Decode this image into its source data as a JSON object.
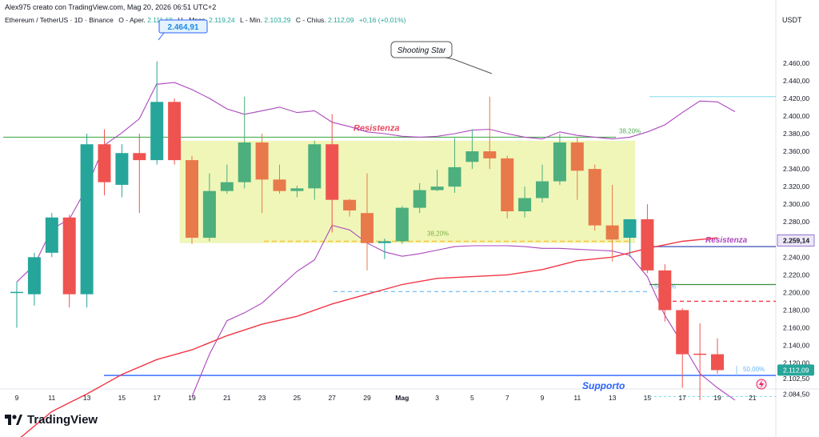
{
  "header": {
    "title": "Alex975 creato con TradingView.com, Mag 20, 2026 06:51 UTC+2"
  },
  "symbol_row": {
    "name": "Ethereum / TetherUS · 1D · Binance",
    "open_label": "O - Aper.",
    "open_value": "2.111,68",
    "high_label": "H - Mass.",
    "high_value": "2.119,24",
    "low_label": "L - Min.",
    "low_value": "2.103,29",
    "close_label": "C - Chius.",
    "close_value": "2.112,09",
    "change": "+0,16 (+0,01%)"
  },
  "currency": "USDT",
  "footer": {
    "logo_text": "TradingView"
  },
  "colors": {
    "up": "#26a69a",
    "up_light": "#4caf7d",
    "down": "#ef5350",
    "down_orange": "#e8794a",
    "range_box": "#eef5b0",
    "resistance_line": "#4caf50",
    "support_line": "#2962ff",
    "bb_band": "#ab47bc",
    "ma_line": "#f23645",
    "price_tag": "#26a69a"
  },
  "chart_data": {
    "type": "candlestick",
    "y_axis_labels": [
      "2.460,00",
      "2.440,00",
      "2.420,00",
      "2.400,00",
      "2.380,00",
      "2.360,00",
      "2.340,00",
      "2.320,00",
      "2.300,00",
      "2.280,00",
      "2.240,00",
      "2.220,00",
      "2.200,00",
      "2.180,00",
      "2.160,00",
      "2.140,00",
      "2.120,00",
      "2.102,50",
      "2.084,50"
    ],
    "y_axis_values": [
      2460,
      2440,
      2420,
      2400,
      2380,
      2360,
      2340,
      2320,
      2300,
      2280,
      2240,
      2220,
      2200,
      2180,
      2160,
      2140,
      2120,
      2102.5,
      2084.5
    ],
    "x_axis_labels": [
      {
        "label": "9",
        "idx": 0
      },
      {
        "label": "11",
        "idx": 2
      },
      {
        "label": "13",
        "idx": 4
      },
      {
        "label": "15",
        "idx": 6
      },
      {
        "label": "17",
        "idx": 8
      },
      {
        "label": "19",
        "idx": 10
      },
      {
        "label": "21",
        "idx": 12
      },
      {
        "label": "23",
        "idx": 14
      },
      {
        "label": "25",
        "idx": 16
      },
      {
        "label": "27",
        "idx": 18
      },
      {
        "label": "29",
        "idx": 20
      },
      {
        "label": "Mag",
        "idx": 22
      },
      {
        "label": "3",
        "idx": 24
      },
      {
        "label": "5",
        "idx": 26
      },
      {
        "label": "7",
        "idx": 28
      },
      {
        "label": "9",
        "idx": 30
      },
      {
        "label": "11",
        "idx": 32
      },
      {
        "label": "13",
        "idx": 34
      },
      {
        "label": "15",
        "idx": 36
      },
      {
        "label": "17",
        "idx": 38
      },
      {
        "label": "19",
        "idx": 40
      },
      {
        "label": "21",
        "idx": 42
      }
    ],
    "candles": [
      {
        "i": 0,
        "o": 2200,
        "h": 2212,
        "l": 2160,
        "c": 2200,
        "style": "flat"
      },
      {
        "i": 1,
        "o": 2198,
        "h": 2245,
        "l": 2185,
        "c": 2240,
        "style": "up"
      },
      {
        "i": 2,
        "o": 2245,
        "h": 2290,
        "l": 2240,
        "c": 2285,
        "style": "up"
      },
      {
        "i": 3,
        "o": 2285,
        "h": 2288,
        "l": 2183,
        "c": 2198,
        "style": "down"
      },
      {
        "i": 4,
        "o": 2198,
        "h": 2380,
        "l": 2183,
        "c": 2368,
        "style": "up"
      },
      {
        "i": 5,
        "o": 2368,
        "h": 2385,
        "l": 2310,
        "c": 2325,
        "style": "down"
      },
      {
        "i": 6,
        "o": 2322,
        "h": 2368,
        "l": 2308,
        "c": 2358,
        "style": "up"
      },
      {
        "i": 7,
        "o": 2358,
        "h": 2380,
        "l": 2290,
        "c": 2350,
        "style": "down"
      },
      {
        "i": 8,
        "o": 2350,
        "h": 2462,
        "l": 2345,
        "c": 2416,
        "style": "up"
      },
      {
        "i": 9,
        "o": 2416,
        "h": 2420,
        "l": 2345,
        "c": 2350,
        "style": "down"
      },
      {
        "i": 10,
        "o": 2350,
        "h": 2355,
        "l": 2255,
        "c": 2262,
        "style": "down_orange"
      },
      {
        "i": 11,
        "o": 2262,
        "h": 2335,
        "l": 2258,
        "c": 2315,
        "style": "up_light"
      },
      {
        "i": 12,
        "o": 2315,
        "h": 2345,
        "l": 2312,
        "c": 2325,
        "style": "up_light"
      },
      {
        "i": 13,
        "o": 2325,
        "h": 2422,
        "l": 2318,
        "c": 2370,
        "style": "up_light"
      },
      {
        "i": 14,
        "o": 2370,
        "h": 2380,
        "l": 2290,
        "c": 2328,
        "style": "down_orange"
      },
      {
        "i": 15,
        "o": 2328,
        "h": 2345,
        "l": 2312,
        "c": 2315,
        "style": "down_orange"
      },
      {
        "i": 16,
        "o": 2315,
        "h": 2321,
        "l": 2308,
        "c": 2318,
        "style": "up_light"
      },
      {
        "i": 17,
        "o": 2318,
        "h": 2372,
        "l": 2305,
        "c": 2368,
        "style": "up_light"
      },
      {
        "i": 18,
        "o": 2368,
        "h": 2402,
        "l": 2268,
        "c": 2305,
        "style": "down"
      },
      {
        "i": 19,
        "o": 2305,
        "h": 2306,
        "l": 2286,
        "c": 2293,
        "style": "down_orange"
      },
      {
        "i": 20,
        "o": 2290,
        "h": 2335,
        "l": 2225,
        "c": 2256,
        "style": "down_orange"
      },
      {
        "i": 21,
        "o": 2256,
        "h": 2261,
        "l": 2238,
        "c": 2258,
        "style": "up"
      },
      {
        "i": 22,
        "o": 2258,
        "h": 2298,
        "l": 2255,
        "c": 2296,
        "style": "up_light"
      },
      {
        "i": 23,
        "o": 2296,
        "h": 2324,
        "l": 2290,
        "c": 2316,
        "style": "up_light"
      },
      {
        "i": 24,
        "o": 2316,
        "h": 2339,
        "l": 2315,
        "c": 2320,
        "style": "up_light"
      },
      {
        "i": 25,
        "o": 2320,
        "h": 2375,
        "l": 2313,
        "c": 2342,
        "style": "up_light"
      },
      {
        "i": 26,
        "o": 2348,
        "h": 2385,
        "l": 2340,
        "c": 2360,
        "style": "up_light"
      },
      {
        "i": 27,
        "o": 2360,
        "h": 2422,
        "l": 2340,
        "c": 2352,
        "style": "down_orange"
      },
      {
        "i": 28,
        "o": 2352,
        "h": 2355,
        "l": 2284,
        "c": 2292,
        "style": "down_orange"
      },
      {
        "i": 29,
        "o": 2292,
        "h": 2320,
        "l": 2285,
        "c": 2307,
        "style": "up_light"
      },
      {
        "i": 30,
        "o": 2307,
        "h": 2345,
        "l": 2302,
        "c": 2326,
        "style": "up_light"
      },
      {
        "i": 31,
        "o": 2326,
        "h": 2380,
        "l": 2322,
        "c": 2370,
        "style": "up_light"
      },
      {
        "i": 32,
        "o": 2370,
        "h": 2376,
        "l": 2305,
        "c": 2338,
        "style": "down_orange"
      },
      {
        "i": 33,
        "o": 2340,
        "h": 2345,
        "l": 2270,
        "c": 2276,
        "style": "down_orange"
      },
      {
        "i": 34,
        "o": 2276,
        "h": 2322,
        "l": 2235,
        "c": 2260,
        "style": "down_orange"
      },
      {
        "i": 35,
        "o": 2262,
        "h": 2283,
        "l": 2240,
        "c": 2283,
        "style": "up"
      },
      {
        "i": 36,
        "o": 2283,
        "h": 2300,
        "l": 2222,
        "c": 2225,
        "style": "down"
      },
      {
        "i": 37,
        "o": 2225,
        "h": 2232,
        "l": 2167,
        "c": 2180,
        "style": "down"
      },
      {
        "i": 38,
        "o": 2180,
        "h": 2182,
        "l": 2092,
        "c": 2130,
        "style": "down"
      },
      {
        "i": 39,
        "o": 2130,
        "h": 2165,
        "l": 2078,
        "c": 2130,
        "style": "down_thin"
      },
      {
        "i": 40,
        "o": 2130,
        "h": 2148,
        "l": 2108,
        "c": 2112,
        "style": "down"
      }
    ],
    "bollinger_upper": [
      [
        8,
        2436
      ],
      [
        9,
        2438
      ],
      [
        10,
        2430
      ],
      [
        11,
        2420
      ],
      [
        12,
        2408
      ],
      [
        13,
        2402
      ],
      [
        14,
        2406
      ],
      [
        15,
        2410
      ],
      [
        16,
        2404
      ],
      [
        17,
        2406
      ],
      [
        18,
        2393
      ],
      [
        19,
        2388
      ],
      [
        20,
        2382
      ],
      [
        21,
        2380
      ],
      [
        22,
        2377
      ],
      [
        23,
        2376
      ],
      [
        24,
        2377
      ],
      [
        25,
        2380
      ],
      [
        26,
        2384
      ],
      [
        27,
        2385
      ],
      [
        28,
        2380
      ],
      [
        29,
        2376
      ],
      [
        30,
        2374
      ],
      [
        31,
        2382
      ],
      [
        32,
        2378
      ],
      [
        33,
        2376
      ],
      [
        34,
        2374
      ],
      [
        35,
        2376
      ],
      [
        36,
        2382
      ],
      [
        37,
        2390
      ],
      [
        38,
        2404
      ],
      [
        39,
        2417
      ],
      [
        40,
        2416
      ],
      [
        41,
        2405
      ]
    ],
    "bollinger_lower": [
      [
        10,
        2082
      ],
      [
        11,
        2130
      ],
      [
        12,
        2168
      ],
      [
        13,
        2177
      ],
      [
        14,
        2188
      ],
      [
        15,
        2206
      ],
      [
        16,
        2224
      ],
      [
        17,
        2237
      ],
      [
        18,
        2276
      ],
      [
        19,
        2271
      ],
      [
        20,
        2256
      ],
      [
        21,
        2246
      ],
      [
        22,
        2241
      ],
      [
        23,
        2244
      ],
      [
        24,
        2248
      ],
      [
        25,
        2252
      ],
      [
        26,
        2253
      ],
      [
        27,
        2253
      ],
      [
        28,
        2253
      ],
      [
        29,
        2252
      ],
      [
        30,
        2250
      ],
      [
        31,
        2250
      ],
      [
        32,
        2249
      ],
      [
        33,
        2248
      ],
      [
        34,
        2247
      ],
      [
        35,
        2242
      ],
      [
        36,
        2218
      ],
      [
        37,
        2174
      ],
      [
        38,
        2142
      ],
      [
        39,
        2108
      ],
      [
        40,
        2092
      ],
      [
        41,
        2078
      ]
    ],
    "bb_left": [
      [
        0,
        2212
      ],
      [
        1,
        2231
      ],
      [
        2,
        2272
      ],
      [
        3,
        2283
      ],
      [
        4,
        2319
      ],
      [
        5,
        2367
      ],
      [
        6,
        2381
      ],
      [
        7,
        2397
      ],
      [
        8,
        2437
      ]
    ],
    "moving_average": [
      [
        0,
        2032
      ],
      [
        2,
        2065
      ],
      [
        4,
        2085
      ],
      [
        6,
        2107
      ],
      [
        8,
        2124
      ],
      [
        10,
        2135
      ],
      [
        12,
        2151
      ],
      [
        14,
        2164
      ],
      [
        16,
        2173
      ],
      [
        18,
        2187
      ],
      [
        20,
        2198
      ],
      [
        22,
        2209
      ],
      [
        24,
        2216
      ],
      [
        26,
        2218
      ],
      [
        28,
        2220
      ],
      [
        30,
        2226
      ],
      [
        32,
        2236
      ],
      [
        34,
        2240
      ],
      [
        36,
        2250
      ],
      [
        38,
        2258
      ],
      [
        40,
        2262
      ]
    ],
    "range_box": {
      "x_start": 9.3,
      "x_end": 35.3,
      "y_top": 2372,
      "y_bottom": 2256
    },
    "resistance_top": {
      "value": 2376,
      "label": "Resistenza",
      "fib_label": "38,20%"
    },
    "fib_low": {
      "value": 2258,
      "label": "38,20%"
    },
    "resistance_right": {
      "value": 2252,
      "label": "Resistenza"
    },
    "support": {
      "value": 2106,
      "label": "Supporto",
      "fib_label": "50,00%"
    },
    "dashed_blue": {
      "value": 2201,
      "label": "50,00%"
    },
    "green_short": {
      "value": 2209
    },
    "red_dashed": {
      "value": 2190
    },
    "cyan_top": {
      "value": 2422
    },
    "cyan_bottom": {
      "value": 2082
    },
    "annotations": {
      "shooting_star": "Shooting Star",
      "high_tag": "2.464,91",
      "last_price": "2.112,09",
      "ref_price": "2.259,14"
    }
  }
}
